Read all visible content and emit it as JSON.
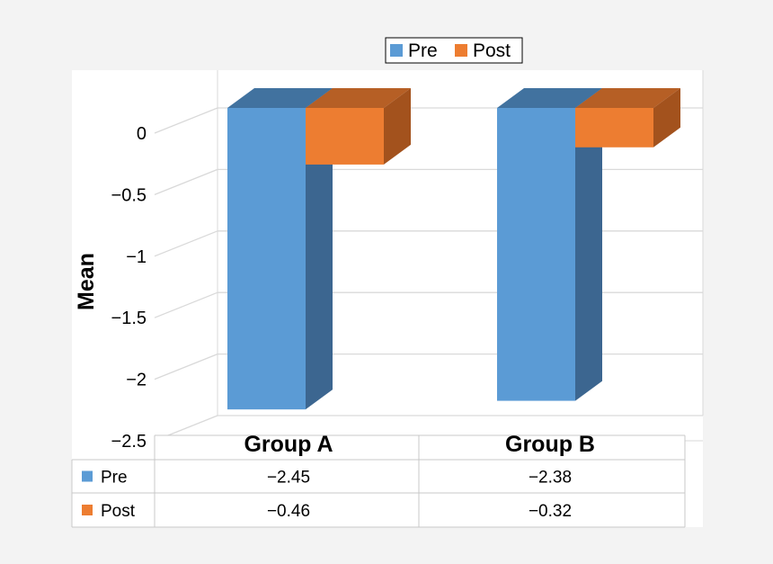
{
  "chart_data": {
    "type": "bar",
    "style": "3d-clustered-column-with-data-table",
    "categories": [
      "Group A",
      "Group B"
    ],
    "series": [
      {
        "name": "Pre",
        "values": [
          -2.45,
          -2.38
        ],
        "value_labels": [
          "−2.45",
          "−2.38"
        ],
        "color": "#5b9bd5",
        "side_color": "#3c6690",
        "top_color": "#41729f"
      },
      {
        "name": "Post",
        "values": [
          -0.46,
          -0.32
        ],
        "value_labels": [
          "−0.46",
          "−0.32"
        ],
        "color": "#ed7d31",
        "side_color": "#a3521d",
        "top_color": "#b65f25"
      }
    ],
    "ylabel": "Mean",
    "xlabel": "",
    "ylim": [
      -2.5,
      0
    ],
    "yticks": [
      0,
      -0.5,
      -1,
      -1.5,
      -2,
      -2.5
    ],
    "ytick_labels": [
      "0",
      "−0.5",
      "−1",
      "−1.5",
      "−2",
      "−2.5"
    ],
    "grid": true,
    "legend_position": "top"
  }
}
